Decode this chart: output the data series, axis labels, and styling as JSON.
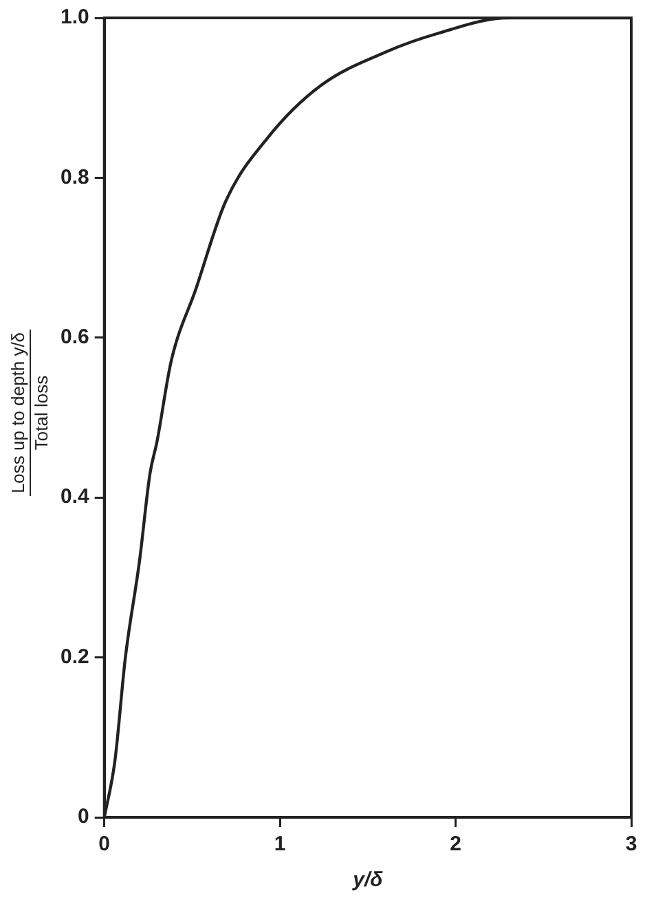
{
  "chart_data": {
    "type": "line",
    "xlabel": "y/δ",
    "ylabel": "Loss up to depth y/δ\nTotal loss",
    "x": [
      0,
      0.06,
      0.12,
      0.2,
      0.26,
      0.3,
      0.38,
      0.52,
      0.69,
      0.93,
      1.23,
      1.61,
      1.89,
      2.3,
      3
    ],
    "series": [
      {
        "color": "#222222",
        "values": [
          0,
          0.07,
          0.2,
          0.32,
          0.43,
          0.47,
          0.57,
          0.66,
          0.77,
          0.85,
          0.915,
          0.958,
          0.98,
          1.0,
          1.0
        ]
      }
    ],
    "xlim": [
      0,
      3
    ],
    "xticks": [
      0,
      1,
      2,
      3
    ],
    "ylim": [
      0,
      1
    ],
    "yticks": [
      0,
      0.2,
      0.4,
      0.6,
      0.8,
      {
        "value": 1,
        "label": "1.0"
      }
    ],
    "marker": "none",
    "line_style": "solid",
    "legend": false
  }
}
